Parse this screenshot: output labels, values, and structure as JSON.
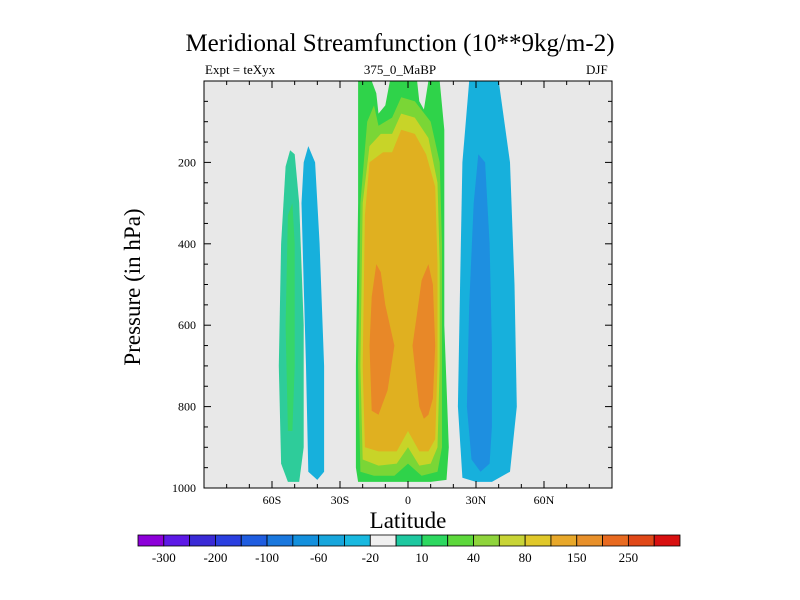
{
  "chart_data": {
    "type": "contour",
    "title": "Meridional Streamfunction (10**9kg/m-2)",
    "left_string": "Expt = teXyx",
    "center_string": "375_0_MaBP",
    "right_string": "DJF",
    "xlabel": "Latitude",
    "ylabel": "Pressure (in hPa)",
    "xlim": [
      -90,
      90
    ],
    "ylim": [
      1000,
      0
    ],
    "x_ticks": [
      {
        "value": -60,
        "label": "60S"
      },
      {
        "value": -30,
        "label": "30S"
      },
      {
        "value": 0,
        "label": "0"
      },
      {
        "value": 30,
        "label": "30N"
      },
      {
        "value": 60,
        "label": "60N"
      }
    ],
    "y_ticks": [
      {
        "value": 200,
        "label": "200"
      },
      {
        "value": 400,
        "label": "400"
      },
      {
        "value": 600,
        "label": "600"
      },
      {
        "value": 800,
        "label": "800"
      },
      {
        "value": 1000,
        "label": "1000"
      }
    ],
    "background_color": "#e8e8e8",
    "colorbar": {
      "colors": [
        "#8d00d9",
        "#5d19e6",
        "#3a2ad6",
        "#2a3fe0",
        "#1f5de0",
        "#1a78de",
        "#1390dd",
        "#17a6dc",
        "#19b9e0",
        "#f0f0f0",
        "#1ec8a0",
        "#2dd860",
        "#5dd83c",
        "#8fd43c",
        "#c8d436",
        "#e0c82a",
        "#e8a82a",
        "#e8902a",
        "#e86a20",
        "#e04818",
        "#d81010"
      ],
      "labels": [
        "-300",
        "-200",
        "-100",
        "-60",
        "-20",
        "10",
        "40",
        "80",
        "150",
        "250"
      ]
    },
    "regions": [
      {
        "level": 20,
        "color": "#2ecc9a",
        "points": [
          [
            -53,
            985
          ],
          [
            -56,
            940
          ],
          [
            -57,
            700
          ],
          [
            -56,
            400
          ],
          [
            -54,
            210
          ],
          [
            -52,
            170
          ],
          [
            -50,
            180
          ],
          [
            -48,
            300
          ],
          [
            -46,
            600
          ],
          [
            -46,
            900
          ],
          [
            -48,
            985
          ]
        ]
      },
      {
        "level": 40,
        "color": "#36d66a",
        "points": [
          [
            -53,
            860
          ],
          [
            -54,
            600
          ],
          [
            -53,
            330
          ],
          [
            -51,
            300
          ],
          [
            -50,
            400
          ],
          [
            -50,
            700
          ],
          [
            -51,
            860
          ]
        ]
      },
      {
        "level": -20,
        "color": "#17b0dc",
        "points": [
          [
            -44,
            960
          ],
          [
            -45,
            700
          ],
          [
            -46,
            500
          ],
          [
            -47,
            300
          ],
          [
            -46,
            200
          ],
          [
            -44,
            160
          ],
          [
            -41,
            200
          ],
          [
            -39,
            400
          ],
          [
            -37,
            700
          ],
          [
            -37,
            960
          ],
          [
            -40,
            980
          ]
        ]
      },
      {
        "level": -20,
        "color": "#17b0dc",
        "points": [
          [
            24,
            975
          ],
          [
            22,
            800
          ],
          [
            23,
            500
          ],
          [
            24,
            200
          ],
          [
            27,
            0
          ],
          [
            33,
            0
          ],
          [
            40,
            0
          ],
          [
            45,
            200
          ],
          [
            47,
            500
          ],
          [
            48,
            800
          ],
          [
            45,
            960
          ],
          [
            37,
            985
          ],
          [
            30,
            985
          ]
        ]
      },
      {
        "level": -60,
        "color": "#1e8fe0",
        "points": [
          [
            28,
            930
          ],
          [
            26,
            800
          ],
          [
            27,
            550
          ],
          [
            29,
            300
          ],
          [
            31,
            180
          ],
          [
            34,
            200
          ],
          [
            36,
            400
          ],
          [
            37,
            650
          ],
          [
            37,
            850
          ],
          [
            36,
            940
          ],
          [
            32,
            960
          ]
        ]
      },
      {
        "level": 10,
        "color": "#2fd34a",
        "points": [
          [
            -22,
            985
          ],
          [
            -23,
            950
          ],
          [
            -23,
            700
          ],
          [
            -22,
            300
          ],
          [
            -22,
            0
          ],
          [
            -16,
            0
          ],
          [
            -14,
            30
          ],
          [
            -13,
            80
          ],
          [
            -10,
            60
          ],
          [
            -8,
            0
          ],
          [
            0,
            0
          ],
          [
            1,
            0
          ],
          [
            4,
            0
          ],
          [
            5,
            50
          ],
          [
            7,
            70
          ],
          [
            9,
            0
          ],
          [
            12,
            0
          ],
          [
            14,
            0
          ],
          [
            16,
            120
          ],
          [
            16,
            300
          ],
          [
            16,
            600
          ],
          [
            18,
            900
          ],
          [
            17,
            980
          ],
          [
            10,
            985
          ],
          [
            0,
            985
          ]
        ]
      },
      {
        "level": 20,
        "color": "#7ad636",
        "points": [
          [
            -21,
            960
          ],
          [
            -22,
            700
          ],
          [
            -21,
            300
          ],
          [
            -18,
            100
          ],
          [
            -15,
            60
          ],
          [
            -13,
            110
          ],
          [
            -7,
            90
          ],
          [
            -3,
            40
          ],
          [
            3,
            50
          ],
          [
            10,
            100
          ],
          [
            14,
            200
          ],
          [
            15,
            400
          ],
          [
            15,
            700
          ],
          [
            15,
            900
          ],
          [
            13,
            960
          ],
          [
            6,
            970
          ],
          [
            0,
            940
          ],
          [
            -6,
            970
          ],
          [
            -15,
            970
          ]
        ]
      },
      {
        "level": 40,
        "color": "#c8d428",
        "points": [
          [
            -20,
            930
          ],
          [
            -21,
            700
          ],
          [
            -20,
            300
          ],
          [
            -17,
            160
          ],
          [
            -12,
            130
          ],
          [
            -7,
            130
          ],
          [
            -3,
            80
          ],
          [
            3,
            90
          ],
          [
            9,
            140
          ],
          [
            13,
            250
          ],
          [
            14,
            450
          ],
          [
            14,
            700
          ],
          [
            13,
            900
          ],
          [
            10,
            940
          ],
          [
            5,
            945
          ],
          [
            0,
            900
          ],
          [
            -5,
            940
          ],
          [
            -13,
            945
          ]
        ]
      },
      {
        "level": 80,
        "color": "#e0b020",
        "points": [
          [
            -19,
            900
          ],
          [
            -20,
            700
          ],
          [
            -19,
            330
          ],
          [
            -17,
            200
          ],
          [
            -11,
            175
          ],
          [
            -7,
            175
          ],
          [
            -3,
            120
          ],
          [
            3,
            130
          ],
          [
            8,
            180
          ],
          [
            12,
            260
          ],
          [
            13,
            450
          ],
          [
            13,
            700
          ],
          [
            12,
            880
          ],
          [
            9,
            910
          ],
          [
            5,
            910
          ],
          [
            0,
            860
          ],
          [
            -5,
            910
          ],
          [
            -13,
            910
          ]
        ]
      },
      {
        "level": 150,
        "color": "#e88828",
        "points": [
          [
            -16,
            810
          ],
          [
            -17,
            650
          ],
          [
            -16,
            530
          ],
          [
            -14,
            450
          ],
          [
            -12,
            470
          ],
          [
            -10,
            550
          ],
          [
            -6,
            650
          ],
          [
            -9,
            760
          ],
          [
            -13,
            820
          ]
        ]
      },
      {
        "level": 150,
        "color": "#e88828",
        "points": [
          [
            5,
            800
          ],
          [
            2,
            650
          ],
          [
            4,
            570
          ],
          [
            6,
            490
          ],
          [
            9,
            450
          ],
          [
            11,
            500
          ],
          [
            12,
            650
          ],
          [
            11,
            780
          ],
          [
            9,
            820
          ],
          [
            7,
            830
          ]
        ]
      }
    ]
  }
}
